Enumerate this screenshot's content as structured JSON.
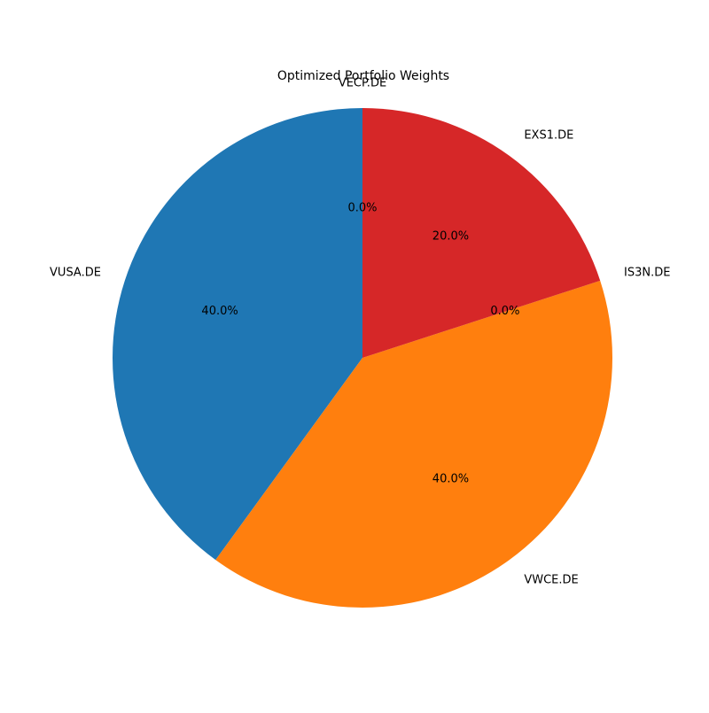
{
  "chart_data": {
    "type": "pie",
    "title": "Optimized Portfolio Weights",
    "start_angle_deg": 90,
    "direction": "counterclockwise",
    "slices": [
      {
        "label": "VECP.DE",
        "value": 0.0,
        "pct_label": "0.0%",
        "color": "#1f77b4"
      },
      {
        "label": "VUSA.DE",
        "value": 40.0,
        "pct_label": "40.0%",
        "color": "#1f77b4"
      },
      {
        "label": "VWCE.DE",
        "value": 40.0,
        "pct_label": "40.0%",
        "color": "#ff7f0e"
      },
      {
        "label": "IS3N.DE",
        "value": 0.0,
        "pct_label": "0.0%",
        "color": "#2ca02c"
      },
      {
        "label": "EXS1.DE",
        "value": 20.0,
        "pct_label": "20.0%",
        "color": "#d62728"
      }
    ]
  }
}
